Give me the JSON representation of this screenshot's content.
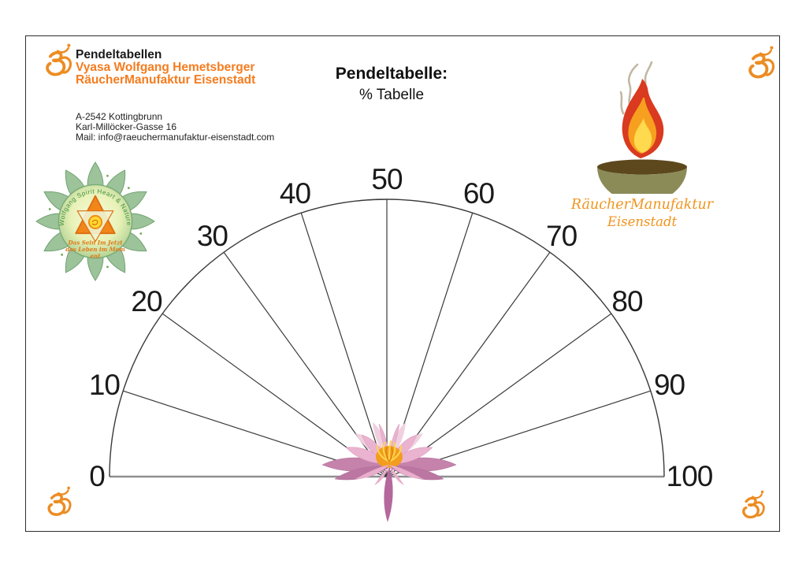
{
  "page": {
    "background": "#ffffff",
    "frame_color": "#2e2e2e"
  },
  "header": {
    "title": "Pendeltabellen",
    "author": "Vyasa Wolfgang Hemetsberger",
    "company": "RäucherManufaktur Eisenstadt",
    "address_line1": "A-2542 Kottingbrunn",
    "address_line2": "Karl-Millöcker-Gasse 16",
    "address_line3": "Mail: info@raeuchermanufaktur-eisenstadt.com",
    "accent_color": "#f57c1f"
  },
  "table_title": {
    "label": "Pendeltabelle:",
    "subtitle": "% Tabelle"
  },
  "logo_left": {
    "arc_text": "Wolfgang Spirit Heart & Nature",
    "motto_line1": "Das Sein Im Jetzt",
    "motto_line2": "das Leben im Mom",
    "motto_line3": "ent"
  },
  "logo_right": {
    "name_line1": "RäucherManufaktur",
    "name_line2": "Eisenstadt",
    "text_color": "#f0941e"
  },
  "icons": {
    "corner_symbol": "om-icon",
    "center_flower": "lotus-flower-icon",
    "right_logo": "incense-flame-bowl-icon",
    "left_logo": "spirit-mandala-icon"
  },
  "om_color": "#ed8c22",
  "chart_data": {
    "type": "pendulum-dial",
    "title": "Pendeltabelle: % Tabelle",
    "unit": "%",
    "min": 0,
    "max": 100,
    "step": 10,
    "tick_values": [
      0,
      10,
      20,
      30,
      40,
      50,
      60,
      70,
      80,
      90,
      100
    ],
    "tick_angles_deg": [
      180,
      162,
      144,
      126,
      108,
      90,
      72,
      54,
      36,
      18,
      0
    ],
    "radial_lines_at": [
      10,
      20,
      30,
      40,
      50,
      60,
      70,
      80,
      90
    ],
    "line_color": "#3a3a3a",
    "baseline_color": "#8f8f8f",
    "label_color": "#1a1a1a"
  }
}
